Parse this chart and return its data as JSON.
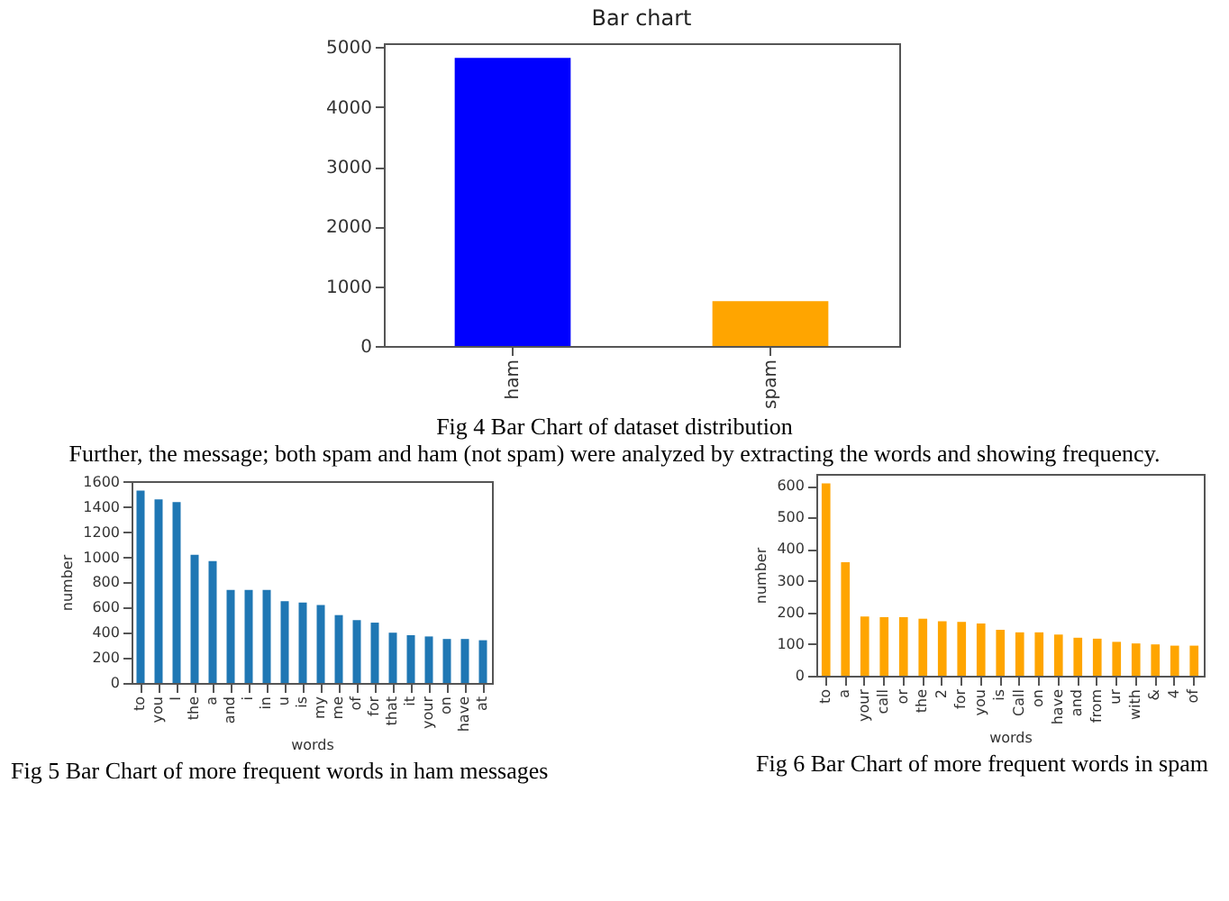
{
  "chart_data": [
    {
      "type": "bar",
      "title": "Bar chart",
      "categories": [
        "ham",
        "spam"
      ],
      "values": [
        4820,
        750
      ],
      "colors": [
        "#0000ff",
        "#ffa500"
      ],
      "ylim": [
        0,
        5066
      ],
      "yticks": [
        0,
        1000,
        2000,
        3000,
        4000,
        5000
      ],
      "grid": false,
      "annotations": [
        "Fig 4 Bar Chart of dataset distribution",
        "Further, the message; both spam and ham (not spam) were analyzed by extracting the words and showing frequency."
      ]
    },
    {
      "type": "bar",
      "xlabel": "words",
      "ylabel": "number",
      "categories": [
        "to",
        "you",
        "I",
        "the",
        "a",
        "and",
        "i",
        "in",
        "u",
        "is",
        "my",
        "me",
        "of",
        "for",
        "that",
        "it",
        "your",
        "on",
        "have",
        "at"
      ],
      "values": [
        1530,
        1460,
        1440,
        1020,
        970,
        740,
        740,
        740,
        650,
        640,
        620,
        540,
        500,
        480,
        400,
        380,
        370,
        350,
        350,
        340
      ],
      "color": "#1f77b4",
      "ylim": [
        0,
        1606
      ],
      "yticks": [
        0,
        200,
        400,
        600,
        800,
        1000,
        1200,
        1400,
        1600
      ],
      "grid": false,
      "annotations": [
        "Fig 5 Bar Chart of more frequent words in ham messages"
      ]
    },
    {
      "type": "bar",
      "xlabel": "words",
      "ylabel": "number",
      "categories": [
        "to",
        "a",
        "your",
        "call",
        "or",
        "the",
        "2",
        "for",
        "you",
        "is",
        "Call",
        "on",
        "have",
        "and",
        "from",
        "ur",
        "with",
        "&",
        "4",
        "of"
      ],
      "values": [
        607,
        358,
        187,
        185,
        185,
        180,
        172,
        170,
        165,
        145,
        137,
        137,
        130,
        120,
        117,
        107,
        102,
        99,
        95,
        95
      ],
      "color": "#ffa500",
      "ylim": [
        0,
        637
      ],
      "yticks": [
        0,
        100,
        200,
        300,
        400,
        500,
        600
      ],
      "grid": false,
      "annotations": [
        "Fig 6 Bar Chart of more frequent words in spam"
      ]
    }
  ]
}
